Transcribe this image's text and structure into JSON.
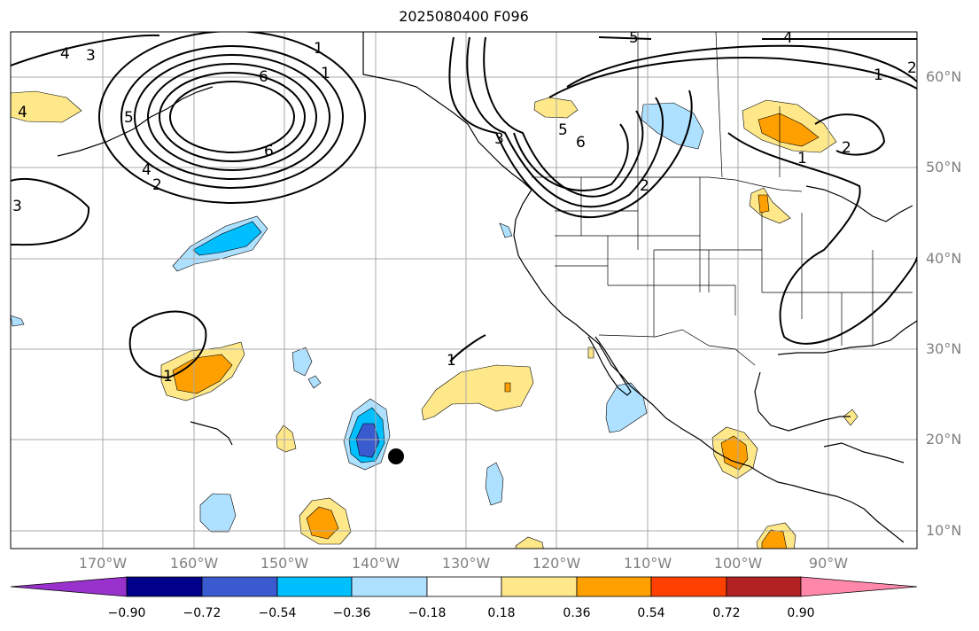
{
  "title": "2025080400 F096",
  "lat_labels": [
    "60°N",
    "50°N",
    "40°N",
    "30°N",
    "20°N",
    "10°N"
  ],
  "lon_labels": [
    "170°W",
    "160°W",
    "150°W",
    "140°W",
    "130°W",
    "120°W",
    "110°W",
    "100°W",
    "90°W"
  ],
  "colorbar": {
    "ticks": [
      "−0.90",
      "−0.72",
      "−0.54",
      "−0.36",
      "−0.18",
      "0.18",
      "0.36",
      "0.54",
      "0.72",
      "0.90"
    ],
    "colors": [
      "#9932cc",
      "#00008b",
      "#3a5bd0",
      "#00bfff",
      "#aee0ff",
      "#ffffff",
      "#ffe88a",
      "#ffa000",
      "#ff4000",
      "#b22222",
      "#ff88aa"
    ]
  },
  "contour_labels": [
    "4",
    "3",
    "5",
    "6",
    "4",
    "2",
    "6",
    "3",
    "1",
    "5",
    "6",
    "5",
    "4",
    "2",
    "3",
    "2",
    "1",
    "2",
    "1",
    "1",
    "1",
    "4",
    "1"
  ],
  "marker": "storm-position"
}
